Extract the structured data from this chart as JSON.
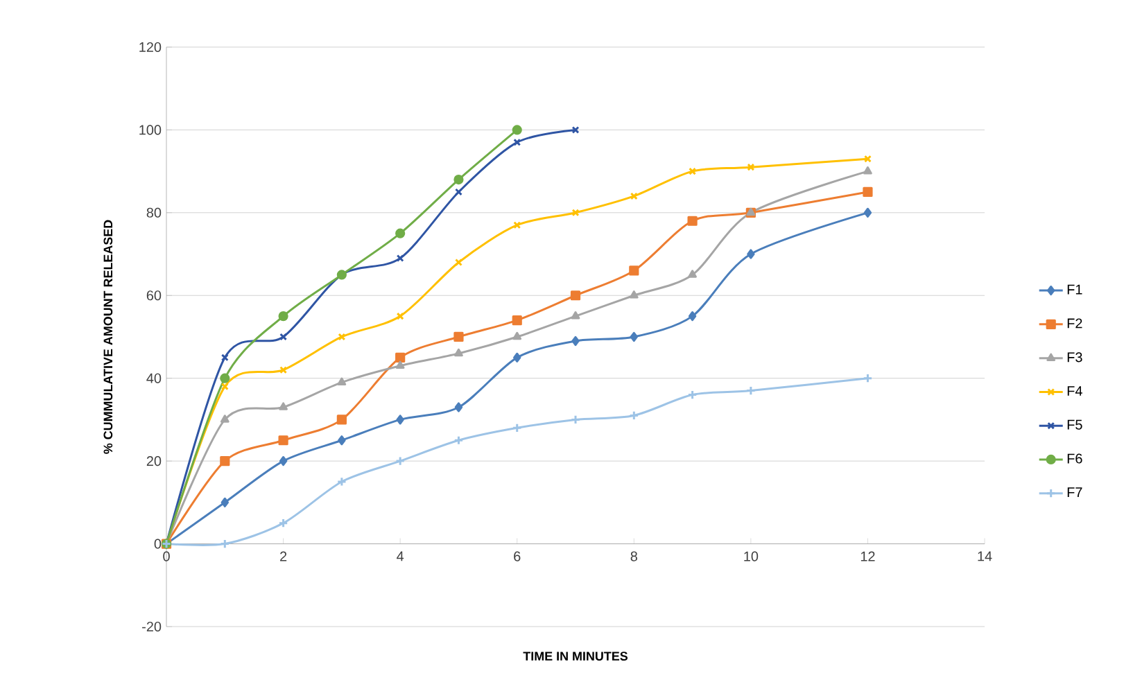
{
  "chart_data": {
    "type": "line",
    "xlabel": "TIME IN MINUTES",
    "ylabel": "% CUMMULATIVE AMOUNT RELEASED",
    "xlim": [
      0,
      14
    ],
    "ylim": [
      -20,
      120
    ],
    "xticks": [
      0,
      2,
      4,
      6,
      8,
      10,
      12,
      14
    ],
    "yticks": [
      -20,
      0,
      20,
      40,
      60,
      80,
      100,
      120
    ],
    "grid": "y",
    "legend": "right",
    "line_style": "solid",
    "series": [
      {
        "name": "F1",
        "color": "#4a7ebb",
        "marker": "diamond",
        "x": [
          0,
          1,
          2,
          3,
          4,
          5,
          6,
          7,
          8,
          9,
          10,
          12
        ],
        "values": [
          0,
          10,
          20,
          25,
          30,
          33,
          45,
          49,
          50,
          55,
          70,
          80
        ]
      },
      {
        "name": "F2",
        "color": "#ed7d31",
        "marker": "square",
        "x": [
          0,
          1,
          2,
          3,
          4,
          5,
          6,
          7,
          8,
          9,
          10,
          12
        ],
        "values": [
          0,
          20,
          25,
          30,
          45,
          50,
          54,
          60,
          66,
          78,
          80,
          85
        ]
      },
      {
        "name": "F3",
        "color": "#a5a5a5",
        "marker": "triangle",
        "x": [
          0,
          1,
          2,
          3,
          4,
          5,
          6,
          7,
          8,
          9,
          10,
          12
        ],
        "values": [
          0,
          30,
          33,
          39,
          43,
          46,
          50,
          55,
          60,
          65,
          80,
          90
        ]
      },
      {
        "name": "F4",
        "color": "#ffc000",
        "marker": "cross",
        "x": [
          0,
          1,
          2,
          3,
          4,
          5,
          6,
          7,
          8,
          9,
          10,
          12
        ],
        "values": [
          0,
          38,
          42,
          50,
          55,
          68,
          77,
          80,
          84,
          90,
          91,
          93
        ]
      },
      {
        "name": "F5",
        "color": "#2f55a4",
        "marker": "cross",
        "x": [
          0,
          1,
          2,
          3,
          4,
          5,
          6,
          7
        ],
        "values": [
          0,
          45,
          50,
          65,
          69,
          85,
          97,
          100
        ]
      },
      {
        "name": "F6",
        "color": "#70ad47",
        "marker": "circle",
        "x": [
          0,
          1,
          2,
          3,
          4,
          5,
          6
        ],
        "values": [
          0,
          40,
          55,
          65,
          75,
          88,
          100
        ]
      },
      {
        "name": "F7",
        "color": "#9dc3e6",
        "marker": "plus",
        "x": [
          0,
          1,
          2,
          3,
          4,
          5,
          6,
          7,
          8,
          9,
          10,
          12
        ],
        "values": [
          0,
          0,
          5,
          15,
          20,
          25,
          28,
          30,
          31,
          36,
          37,
          40
        ]
      }
    ]
  }
}
